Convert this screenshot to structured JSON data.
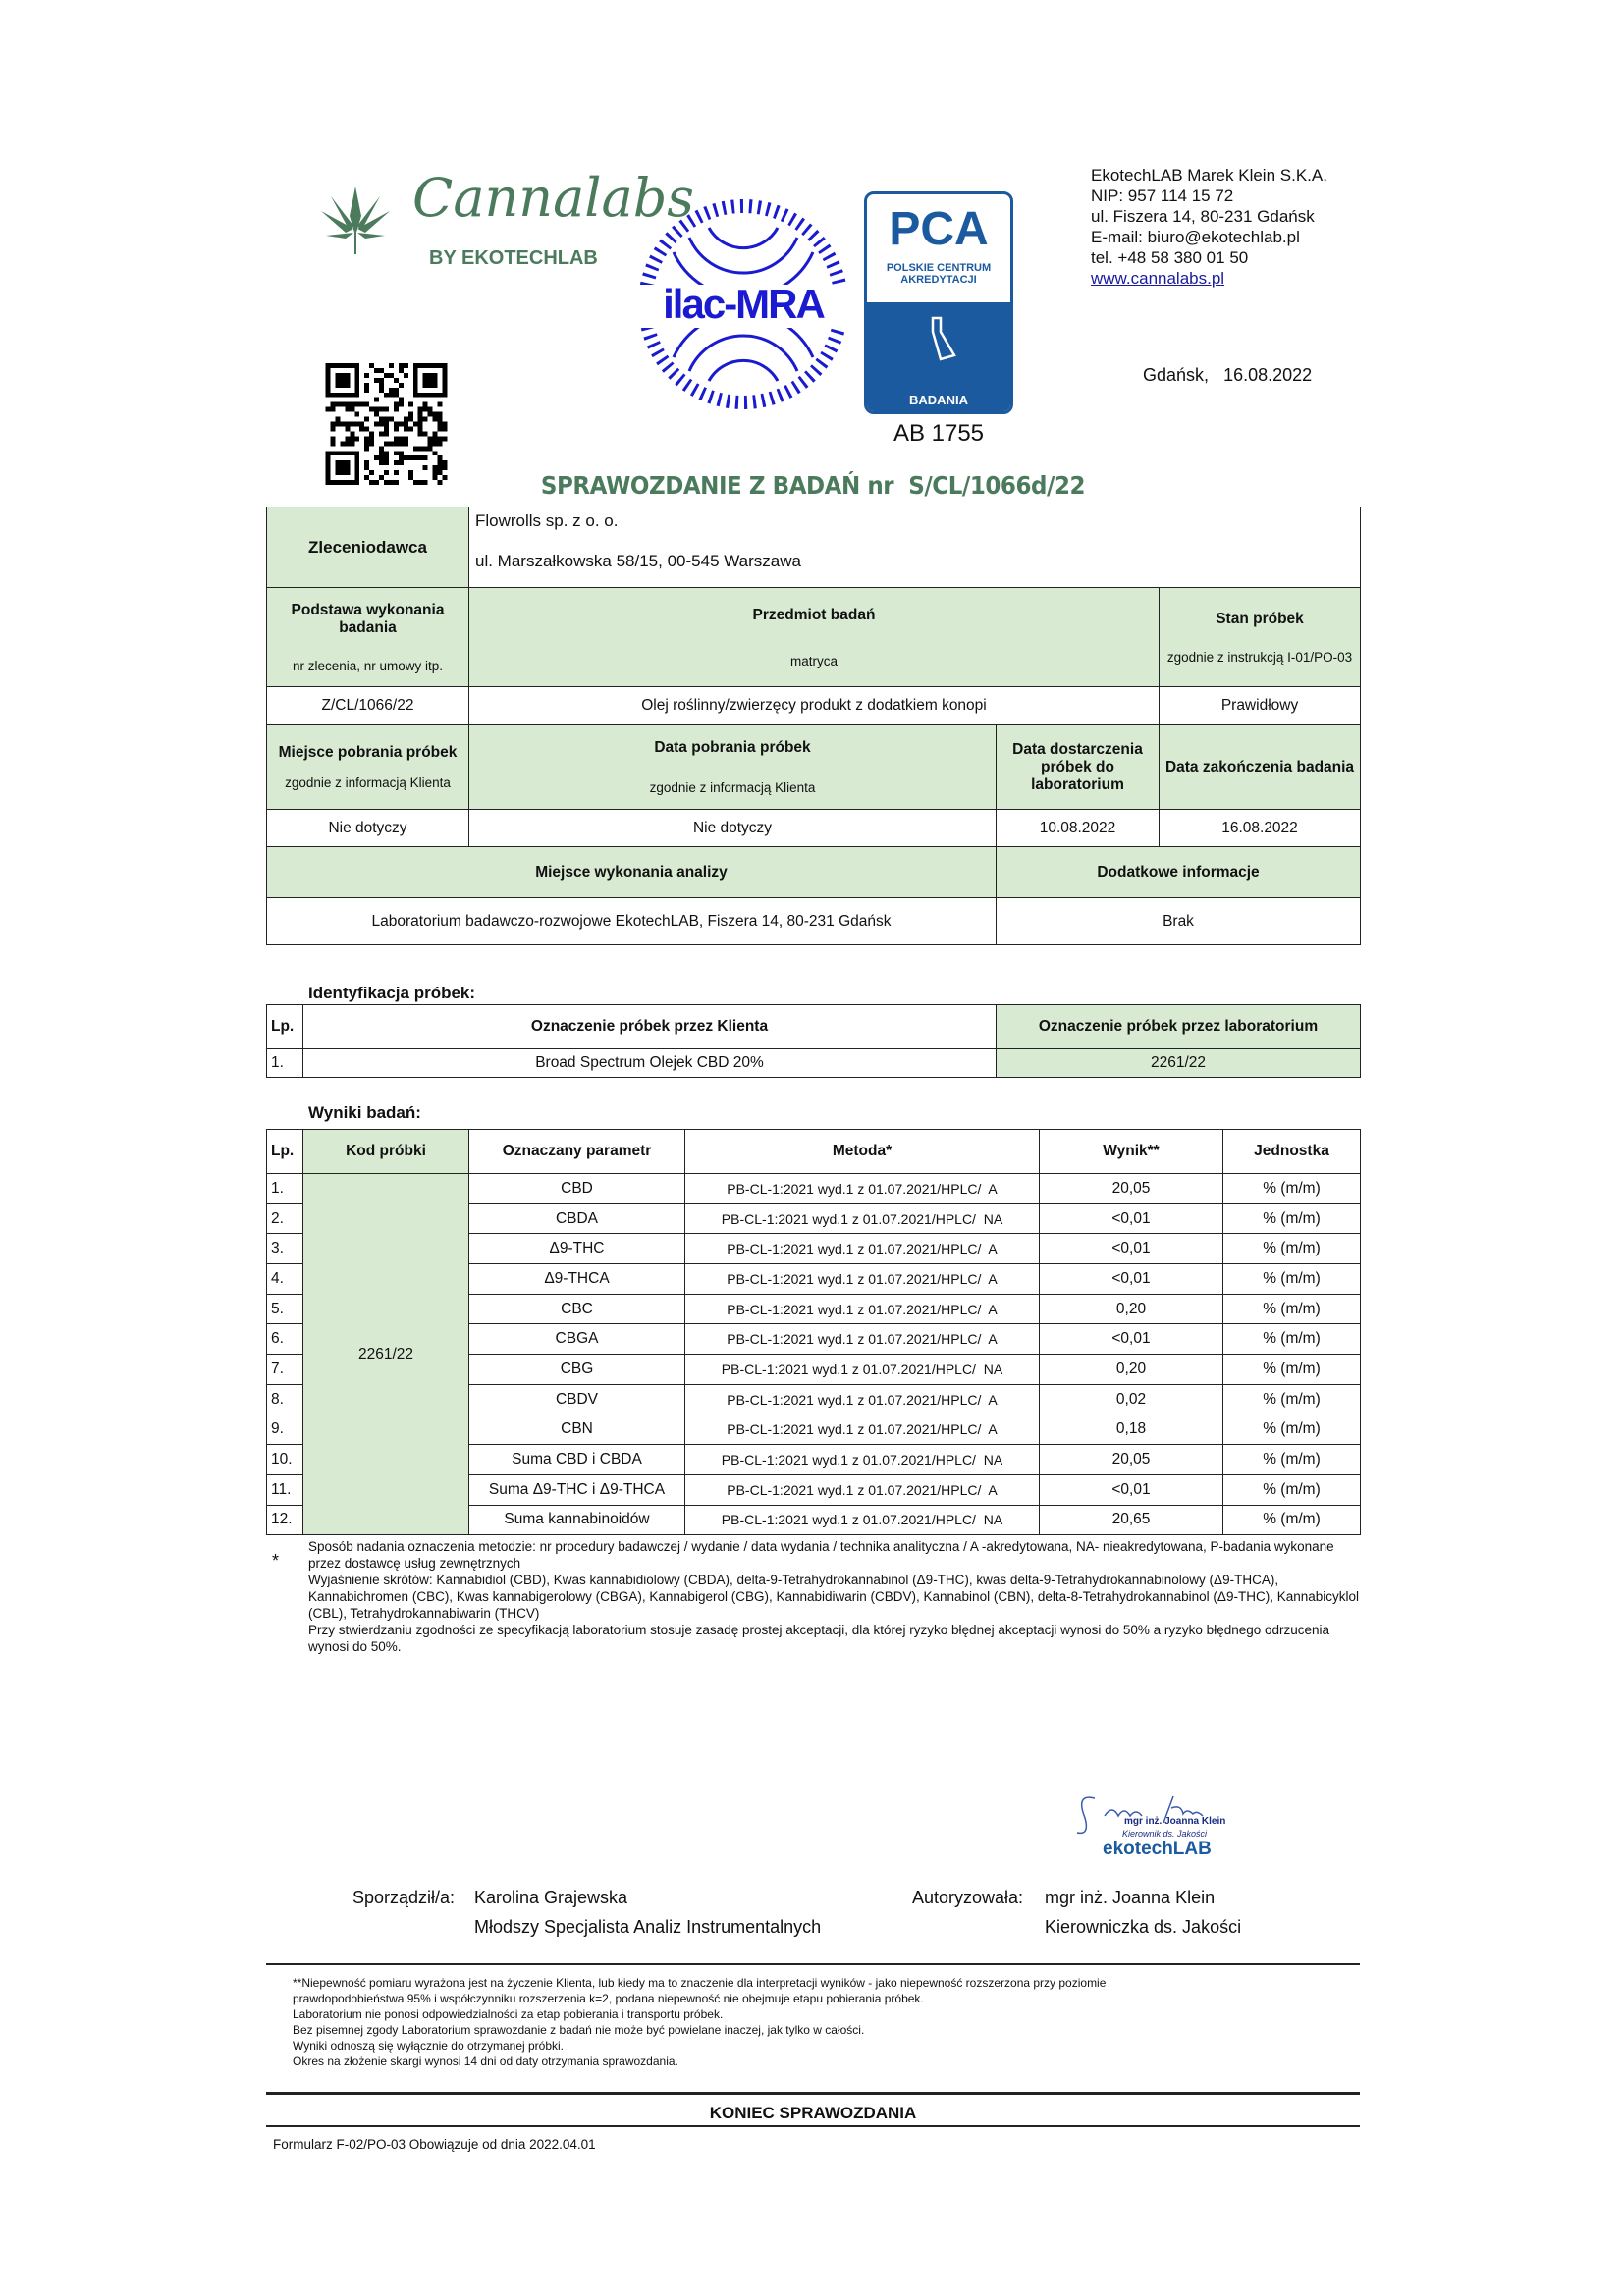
{
  "logos": {
    "cannalabs": "Cannalabs",
    "cannalabs_sub": "BY EKOTECHLAB",
    "ilac": "ilac-MRA",
    "pca": "PCA",
    "pca_sub1": "Polskie Centrum",
    "pca_sub2": "Akredytacji",
    "pca_badania": "BADANIA",
    "pca_number": "AB 1755",
    "signature_stamp": [
      "mgr inż. Joanna Klein",
      "Kierownik ds. Jakości",
      "ekotechLAB"
    ]
  },
  "colors": {
    "green_header": "#d9ead3",
    "title_green": "#4b7b5c",
    "ilac_blue": "#1a1ad0",
    "pca_blue": "#1c5aa0"
  },
  "company": {
    "name": "EkotechLAB Marek Klein S.K.A.",
    "nip": "NIP: 957 114 15 72",
    "address": "ul. Fiszera 14, 80-231 Gdańsk",
    "email": "E-mail: biuro@ekotechlab.pl",
    "tel": "tel. +48 58 380 01 50",
    "www": "www.cannalabs.pl"
  },
  "date_place": "Gdańsk,",
  "date": "16.08.2022",
  "title": "SPRAWOZDANIE Z BADAŃ nr",
  "report_no": "S/CL/1066d/22",
  "info": {
    "client_label": "Zleceniodawca",
    "client_name": "Flowrolls sp. z o. o.",
    "client_address": "ul. Marszałkowska 58/15, 00-545 Warszawa",
    "basis_label": "Podstawa wykonania badania",
    "basis_sub": "nr zlecenia, nr umowy itp.",
    "basis_value": "Z/CL/1066/22",
    "subject_label": "Przedmiot badań",
    "subject_sub": "matryca",
    "subject_value": "Olej roślinny/zwierzęcy produkt z dodatkiem konopi",
    "state_label": "Stan próbek",
    "state_sub": "zgodnie z instrukcją I-01/PO-03",
    "state_value": "Prawidłowy",
    "place_label": "Miejsce pobrania próbek",
    "place_sub": "zgodnie z informacją Klienta",
    "place_value": "Nie dotyczy",
    "sdate_label": "Data pobrania próbek",
    "sdate_sub": "zgodnie z informacją Klienta",
    "sdate_value": "Nie dotyczy",
    "delivery_label": "Data dostarczenia próbek do laboratorium",
    "delivery_value": "10.08.2022",
    "end_label": "Data zakończenia badania",
    "end_value": "16.08.2022",
    "lab_label": "Miejsce wykonania analizy",
    "lab_value": "Laboratorium badawczo-rozwojowe EkotechLAB, Fiszera 14, 80-231 Gdańsk",
    "extra_label": "Dodatkowe informacje",
    "extra_value": "Brak"
  },
  "identification": {
    "heading": "Identyfikacja próbek:",
    "headers": [
      "Lp.",
      "Oznaczenie  próbek przez Klienta",
      "Oznaczenie próbek przez laboratorium"
    ],
    "row": [
      "1.",
      "Broad Spectrum Olejek CBD 20%",
      "2261/22"
    ]
  },
  "results": {
    "heading": "Wyniki badań:",
    "headers": [
      "Lp.",
      "Kod próbki",
      "Oznaczany parametr",
      "Metoda*",
      "Wynik**",
      "Jednostka"
    ],
    "sample_code": "2261/22",
    "rows": [
      [
        "1.",
        "CBD",
        "PB-CL-1:2021 wyd.1 z 01.07.2021/HPLC/  A",
        "20,05",
        "% (m/m)"
      ],
      [
        "2.",
        "CBDA",
        "PB-CL-1:2021 wyd.1 z 01.07.2021/HPLC/  NA",
        "<0,01",
        "% (m/m)"
      ],
      [
        "3.",
        "Δ9-THC",
        "PB-CL-1:2021 wyd.1 z 01.07.2021/HPLC/  A",
        "<0,01",
        "% (m/m)"
      ],
      [
        "4.",
        "Δ9-THCA",
        "PB-CL-1:2021 wyd.1 z 01.07.2021/HPLC/  A",
        "<0,01",
        "% (m/m)"
      ],
      [
        "5.",
        "CBC",
        "PB-CL-1:2021 wyd.1 z 01.07.2021/HPLC/  A",
        "0,20",
        "% (m/m)"
      ],
      [
        "6.",
        "CBGA",
        "PB-CL-1:2021 wyd.1 z 01.07.2021/HPLC/  A",
        "<0,01",
        "% (m/m)"
      ],
      [
        "7.",
        "CBG",
        "PB-CL-1:2021 wyd.1 z 01.07.2021/HPLC/  NA",
        "0,20",
        "% (m/m)"
      ],
      [
        "8.",
        "CBDV",
        "PB-CL-1:2021 wyd.1 z 01.07.2021/HPLC/  A",
        "0,02",
        "% (m/m)"
      ],
      [
        "9.",
        "CBN",
        "PB-CL-1:2021 wyd.1 z 01.07.2021/HPLC/  A",
        "0,18",
        "% (m/m)"
      ],
      [
        "10.",
        "Suma CBD i CBDA",
        "PB-CL-1:2021 wyd.1 z 01.07.2021/HPLC/  NA",
        "20,05",
        "% (m/m)"
      ],
      [
        "11.",
        "Suma Δ9-THC i Δ9-THCA",
        "PB-CL-1:2021 wyd.1 z 01.07.2021/HPLC/  A",
        "<0,01",
        "% (m/m)"
      ],
      [
        "12.",
        "Suma kannabinoidów",
        "PB-CL-1:2021 wyd.1 z 01.07.2021/HPLC/  NA",
        "20,65",
        "% (m/m)"
      ]
    ]
  },
  "notes": {
    "star": "*",
    "lines": [
      "Sposób nadania oznaczenia metodzie: nr procedury badawczej / wydanie / data wydania / technika analityczna / A -akredytowana, NA- nieakredytowana, P-badania wykonane przez dostawcę usług zewnętrznych",
      "Wyjaśnienie skrótów: Kannabidiol (CBD), Kwas kannabidiolowy (CBDA), delta-9-Tetrahydrokannabinol (Δ9-THC), kwas delta-9-Tetrahydrokannabinolowy (Δ9-THCA), Kannabichromen (CBC), Kwas kannabigerolowy (CBGA), Kannabigerol (CBG), Kannabidiwarin (CBDV), Kannabinol (CBN), delta-8-Tetrahydrokannabinol (Δ9-THC), Kannabicyklol (CBL), Tetrahydrokannabiwarin (THCV)",
      "Przy stwierdzaniu zgodności ze specyfikacją laboratorium stosuje zasadę prostej akceptacji, dla której ryzyko błędnej akceptacji wynosi do 50% a ryzyko błędnego odrzucenia wynosi do 50%."
    ]
  },
  "signatures": {
    "prepared_label": "Sporządził/a:",
    "prepared_name": "Karolina Grajewska",
    "prepared_role": "Młodszy Specjalista Analiz Instrumentalnych",
    "auth_label": "Autoryzowała:",
    "auth_name": "mgr inż. Joanna Klein",
    "auth_role": "Kierowniczka ds. Jakości"
  },
  "disclaimer": [
    "**Niepewność pomiaru wyrażona jest na życzenie Klienta,  lub kiedy ma to znaczenie dla interpretacji wyników - jako niepewność rozszerzona przy poziomie prawdopodobieństwa 95% i współczynniku rozszerzenia k=2, podana niepewność nie obejmuje etapu pobierania próbek.",
    "Laboratorium nie ponosi odpowiedzialności za etap pobierania i transportu próbek.",
    "Bez pisemnej zgody Laboratorium sprawozdanie z badań nie może być powielane inaczej, jak tylko w całości.",
    "Wyniki odnoszą się wyłącznie do otrzymanej próbki.",
    "Okres na złożenie skargi wynosi 14 dni od daty otrzymania sprawozdania."
  ],
  "end": "KONIEC SPRAWOZDANIA",
  "form": "Formularz F-02/PO-03 Obowiązuje od dnia 2022.04.01"
}
